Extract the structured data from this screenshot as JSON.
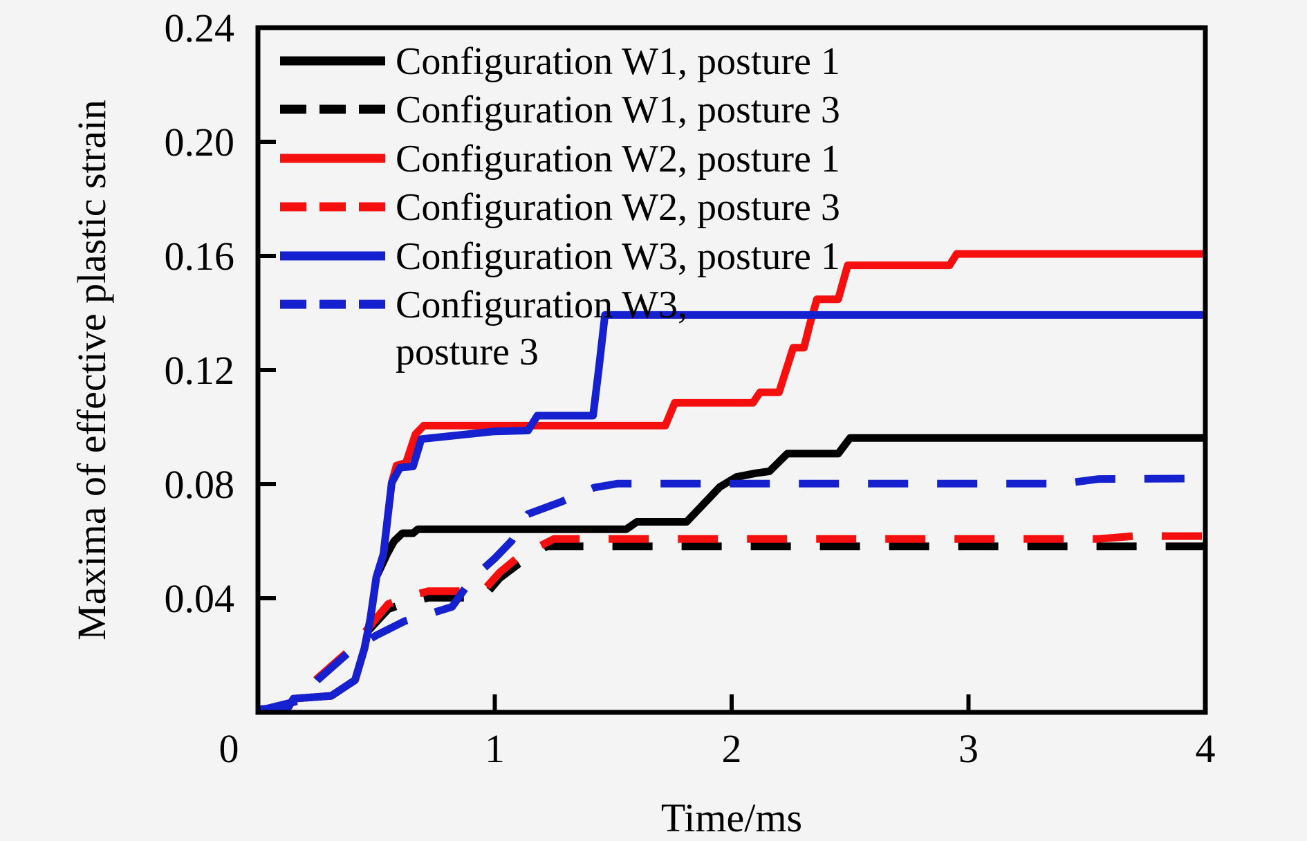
{
  "figure": {
    "background_color": "#f4f4f4",
    "border_color": "#000000"
  },
  "chart_data": {
    "type": "line",
    "title": "",
    "xlabel": "Time/ms",
    "ylabel": "Maxima of effective plastic strain",
    "xlim": [
      0,
      4
    ],
    "ylim": [
      0,
      0.24
    ],
    "grid": false,
    "legend_position": "top-left",
    "xticks": {
      "values": [
        0,
        1,
        2,
        3,
        4
      ],
      "labels": [
        "0",
        "1",
        "2",
        "3",
        "4"
      ]
    },
    "yticks": {
      "values": [
        0.04,
        0.08,
        0.12,
        0.16,
        0.2,
        0.24
      ],
      "labels": [
        "0.04",
        "0.08",
        "0.12",
        "0.16",
        "0.20",
        "0.24"
      ]
    },
    "colors": {
      "black": "#000000",
      "red": "#f50f0f",
      "blue": "#1520cf"
    },
    "series": [
      {
        "name": "Configuration W1, posture 1",
        "color_key": "black",
        "style": "solid",
        "points": [
          [
            0,
            0.001
          ],
          [
            0.13,
            0.002
          ],
          [
            0.15,
            0.0048
          ],
          [
            0.31,
            0.0058
          ],
          [
            0.41,
            0.0113
          ],
          [
            0.45,
            0.0225
          ],
          [
            0.475,
            0.033
          ],
          [
            0.5,
            0.0475
          ],
          [
            0.545,
            0.0555
          ],
          [
            0.575,
            0.06
          ],
          [
            0.61,
            0.0628
          ],
          [
            0.655,
            0.0628
          ],
          [
            0.675,
            0.0642
          ],
          [
            1.555,
            0.0642
          ],
          [
            1.6,
            0.0668
          ],
          [
            1.81,
            0.0668
          ],
          [
            1.95,
            0.079
          ],
          [
            2.02,
            0.0825
          ],
          [
            2.1,
            0.0838
          ],
          [
            2.16,
            0.0845
          ],
          [
            2.235,
            0.0907
          ],
          [
            2.45,
            0.0907
          ],
          [
            2.5,
            0.0962
          ],
          [
            4,
            0.0962
          ]
        ]
      },
      {
        "name": "Configuration W1, posture 3",
        "color_key": "black",
        "style": "dashed",
        "points": [
          [
            0,
            0.0005
          ],
          [
            0.17,
            0.004
          ],
          [
            0.25,
            0.0115
          ],
          [
            0.4,
            0.0225
          ],
          [
            0.47,
            0.029
          ],
          [
            0.55,
            0.0362
          ],
          [
            0.63,
            0.0385
          ],
          [
            0.72,
            0.0402
          ],
          [
            0.95,
            0.0402
          ],
          [
            1.02,
            0.047
          ],
          [
            1.1,
            0.052
          ],
          [
            1.22,
            0.0582
          ],
          [
            4,
            0.0582
          ]
        ]
      },
      {
        "name": "Configuration W2, posture 1",
        "color_key": "red",
        "style": "solid",
        "points": [
          [
            0,
            0.001
          ],
          [
            0.13,
            0.002
          ],
          [
            0.15,
            0.0048
          ],
          [
            0.31,
            0.0058
          ],
          [
            0.41,
            0.0113
          ],
          [
            0.45,
            0.0225
          ],
          [
            0.475,
            0.033
          ],
          [
            0.5,
            0.0475
          ],
          [
            0.53,
            0.0555
          ],
          [
            0.55,
            0.07
          ],
          [
            0.565,
            0.0805
          ],
          [
            0.585,
            0.0865
          ],
          [
            0.625,
            0.0875
          ],
          [
            0.665,
            0.0975
          ],
          [
            0.7,
            0.1005
          ],
          [
            1.72,
            0.1005
          ],
          [
            1.76,
            0.1085
          ],
          [
            2.09,
            0.1085
          ],
          [
            2.12,
            0.1122
          ],
          [
            2.2,
            0.1122
          ],
          [
            2.23,
            0.12
          ],
          [
            2.26,
            0.1278
          ],
          [
            2.305,
            0.1278
          ],
          [
            2.33,
            0.136
          ],
          [
            2.36,
            0.1448
          ],
          [
            2.45,
            0.1448
          ],
          [
            2.49,
            0.1567
          ],
          [
            2.92,
            0.1567
          ],
          [
            2.95,
            0.1607
          ],
          [
            4,
            0.1607
          ]
        ]
      },
      {
        "name": "Configuration W2, posture 3",
        "color_key": "red",
        "style": "dashed",
        "points": [
          [
            0,
            0.0005
          ],
          [
            0.17,
            0.004
          ],
          [
            0.25,
            0.0118
          ],
          [
            0.4,
            0.0228
          ],
          [
            0.47,
            0.03
          ],
          [
            0.55,
            0.038
          ],
          [
            0.63,
            0.0405
          ],
          [
            0.72,
            0.0425
          ],
          [
            0.95,
            0.0425
          ],
          [
            1.02,
            0.049
          ],
          [
            1.1,
            0.0545
          ],
          [
            1.25,
            0.0608
          ],
          [
            3.55,
            0.0608
          ],
          [
            3.7,
            0.0618
          ],
          [
            4,
            0.0618
          ]
        ]
      },
      {
        "name": "Configuration W3, posture 1",
        "color_key": "blue",
        "style": "solid",
        "points": [
          [
            0,
            0.001
          ],
          [
            0.13,
            0.002
          ],
          [
            0.15,
            0.0048
          ],
          [
            0.31,
            0.0058
          ],
          [
            0.41,
            0.0113
          ],
          [
            0.45,
            0.0225
          ],
          [
            0.475,
            0.033
          ],
          [
            0.5,
            0.0475
          ],
          [
            0.53,
            0.0555
          ],
          [
            0.55,
            0.07
          ],
          [
            0.565,
            0.0805
          ],
          [
            0.6,
            0.0858
          ],
          [
            0.655,
            0.0862
          ],
          [
            0.69,
            0.0958
          ],
          [
            1.0,
            0.0985
          ],
          [
            1.14,
            0.0988
          ],
          [
            1.18,
            0.104
          ],
          [
            1.415,
            0.104
          ],
          [
            1.44,
            0.121
          ],
          [
            1.465,
            0.1393
          ],
          [
            4,
            0.1393
          ]
        ]
      },
      {
        "name": "Configuration W3,\nposture 3",
        "color_key": "blue",
        "style": "dashed",
        "points": [
          [
            0,
            0.0005
          ],
          [
            0.17,
            0.004
          ],
          [
            0.25,
            0.0112
          ],
          [
            0.4,
            0.0222
          ],
          [
            0.5,
            0.027
          ],
          [
            0.62,
            0.032
          ],
          [
            0.75,
            0.0352
          ],
          [
            0.82,
            0.037
          ],
          [
            0.9,
            0.0465
          ],
          [
            1.0,
            0.054
          ],
          [
            1.07,
            0.06
          ],
          [
            1.14,
            0.0695
          ],
          [
            1.28,
            0.0738
          ],
          [
            1.42,
            0.0788
          ],
          [
            1.52,
            0.0802
          ],
          [
            3.4,
            0.0802
          ],
          [
            3.55,
            0.0818
          ],
          [
            4,
            0.082
          ]
        ]
      }
    ]
  }
}
